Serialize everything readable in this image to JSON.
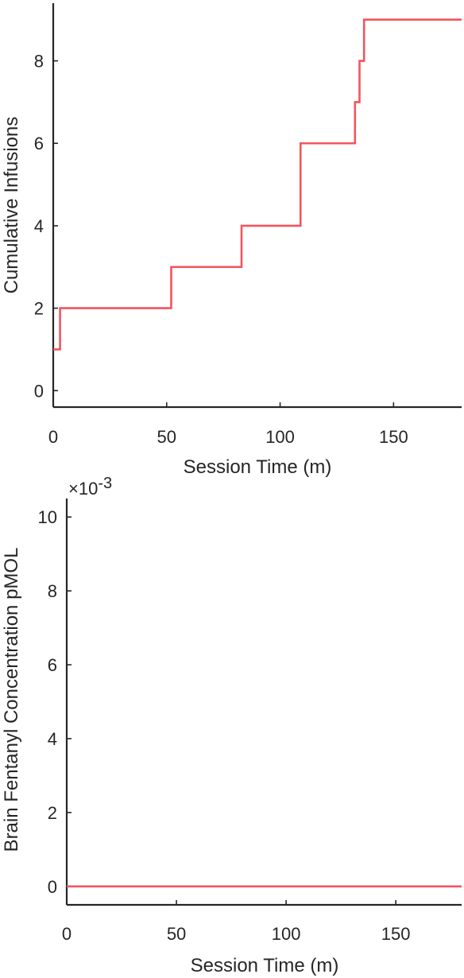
{
  "chart_data": [
    {
      "type": "line",
      "step": true,
      "xlabel": "Session Time (m)",
      "ylabel": "Cumulative Infusions",
      "xlim": [
        0,
        180
      ],
      "ylim": [
        -0.4,
        9.4
      ],
      "xticks": [
        "0",
        "50",
        "100",
        "150"
      ],
      "yticks": [
        "0",
        "2",
        "4",
        "6",
        "8"
      ],
      "grid": false,
      "series": [
        {
          "color": "#f3545e",
          "x": [
            0,
            3,
            52,
            83,
            109,
            133,
            135,
            137,
            180
          ],
          "y": [
            1,
            2,
            3,
            4,
            6,
            7,
            8,
            9,
            9
          ]
        }
      ]
    },
    {
      "type": "line",
      "xlabel": "Session Time (m)",
      "ylabel": "Brain Fentanyl Concentration pMOL",
      "exponent_label": "×10",
      "exponent_power": "-3",
      "xlim": [
        0,
        180
      ],
      "ylim": [
        -0.0005,
        0.0105
      ],
      "xticks": [
        "0",
        "50",
        "100",
        "150"
      ],
      "yticks": [
        "0",
        "2",
        "4",
        "6",
        "8",
        "10"
      ],
      "grid": false,
      "series": [
        {
          "color": "#f3545e",
          "x": [
            0,
            180
          ],
          "y": [
            0,
            0
          ]
        }
      ]
    }
  ]
}
